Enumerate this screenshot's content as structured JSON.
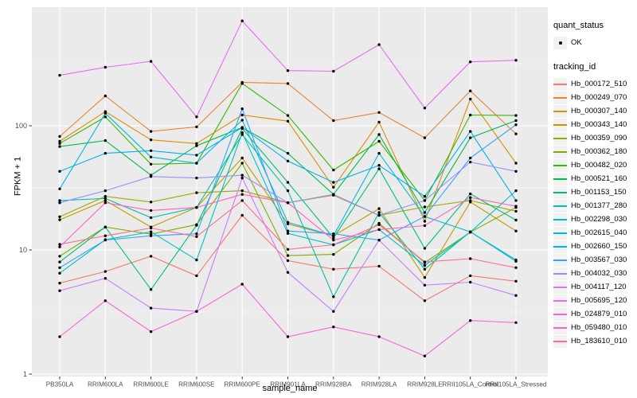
{
  "figure": {
    "y_axis": {
      "label": "FPKM + 1",
      "tick_labels": [
        "1",
        "10",
        "100"
      ],
      "tick_values": [
        1,
        10,
        100
      ],
      "minor_tick_values": [
        3.162,
        31.62,
        316.2
      ]
    },
    "x_axis": {
      "label": "sample_name"
    },
    "legend": {
      "quant_status": {
        "title": "quant_status",
        "items": [
          {
            "label": "OK",
            "marker": "black-point"
          }
        ]
      },
      "tracking_id": {
        "title": "tracking_id"
      }
    },
    "colors": {
      "panel_bg": "#EBEBEB",
      "grid": "#FFFFFF",
      "point": "#000000",
      "tick_text": "#4D4D4D",
      "tick_mark": "#333333",
      "legend_key_bg": "#F2F2F2"
    }
  },
  "chart_data": {
    "type": "line",
    "title": "",
    "xlabel": "sample_name",
    "ylabel": "FPKM + 1",
    "y_scale": "log10",
    "ylim": [
      1,
      900
    ],
    "grid": true,
    "legend_position": "right",
    "point_marker": "black dot (quant_status OK)",
    "x": [
      "PB350LA",
      "RRIM600LA",
      "RRIM600LE",
      "RRIM600SE",
      "RRIM600PE",
      "RRIM901LA",
      "RRIM928BA",
      "RRIM928LA",
      "RRIM928LE",
      "RRII105LA_Control",
      "RRII105LA_Stressed"
    ],
    "series": [
      {
        "name": "Hb_000172_510",
        "color": "#F8766D",
        "quant_status": "OK",
        "values": [
          5.4,
          6.7,
          8.9,
          6.2,
          19,
          8.2,
          7.0,
          7.4,
          3.9,
          6.2,
          5.6
        ]
      },
      {
        "name": "Hb_000249_070",
        "color": "#EA8331",
        "quant_status": "OK",
        "values": [
          82,
          174,
          90,
          98,
          224,
          219,
          110,
          128,
          80,
          191,
          86
        ]
      },
      {
        "name": "Hb_000307_140",
        "color": "#D89000",
        "quant_status": "OK",
        "values": [
          75,
          130,
          77,
          72,
          122,
          109,
          32,
          107,
          17,
          164,
          50
        ]
      },
      {
        "name": "Hb_000343_140",
        "color": "#C09B00",
        "quant_status": "OK",
        "values": [
          17.5,
          25,
          15.3,
          22,
          55,
          16.2,
          13,
          21.5,
          6.0,
          24.3,
          14.2
        ]
      },
      {
        "name": "Hb_000359_090",
        "color": "#A3A500",
        "quant_status": "OK",
        "values": [
          18.5,
          27,
          24.3,
          28.9,
          30,
          24,
          27.6,
          19,
          22.2,
          25,
          20.5
        ]
      },
      {
        "name": "Hb_000362_180",
        "color": "#7CAE00",
        "quant_status": "OK",
        "values": [
          8.9,
          15.3,
          13.4,
          16,
          50,
          9.0,
          9.2,
          16.4,
          7.9,
          13.9,
          22
        ]
      },
      {
        "name": "Hb_000482_020",
        "color": "#39B600",
        "quant_status": "OK",
        "values": [
          72,
          118,
          49,
          50,
          219,
          121,
          44,
          75,
          25,
          122,
          121
        ]
      },
      {
        "name": "Hb_000521_160",
        "color": "#00BB4E",
        "quant_status": "OK",
        "values": [
          68,
          76,
          40,
          69,
          97,
          60,
          28,
          85,
          20,
          80,
          110
        ]
      },
      {
        "name": "Hb_001153_150",
        "color": "#00BF7D",
        "quant_status": "OK",
        "values": [
          8.0,
          15.3,
          4.8,
          15.8,
          95,
          35,
          12.5,
          45,
          10.3,
          28.3,
          17.4
        ]
      },
      {
        "name": "Hb_001377_280",
        "color": "#00C1A3",
        "quant_status": "OK",
        "values": [
          25,
          26,
          18.2,
          22,
          85,
          30,
          4.2,
          20,
          7.0,
          14,
          8.1
        ]
      },
      {
        "name": "Hb_002298_030",
        "color": "#00BFC4",
        "quant_status": "OK",
        "values": [
          6.5,
          12.1,
          14,
          8.3,
          88,
          13.6,
          11,
          14.6,
          7.5,
          13.9,
          30
        ]
      },
      {
        "name": "Hb_002615_040",
        "color": "#00BAE0",
        "quant_status": "OK",
        "values": [
          31,
          126,
          56,
          50,
          111,
          16.7,
          13,
          60,
          18.6,
          14,
          8.3
        ]
      },
      {
        "name": "Hb_002660_150",
        "color": "#00B0F6",
        "quant_status": "OK",
        "values": [
          43,
          60,
          63,
          58,
          97,
          52,
          35,
          48,
          27,
          90,
          25
        ]
      },
      {
        "name": "Hb_003567_030",
        "color": "#35A2FF",
        "quant_status": "OK",
        "values": [
          7.2,
          12,
          13,
          13.5,
          137,
          14.2,
          13.5,
          12,
          18.6,
          55,
          102
        ]
      },
      {
        "name": "Hb_004032_030",
        "color": "#9590FF",
        "quant_status": "OK",
        "values": [
          24,
          30,
          39,
          38,
          40,
          24,
          28,
          19,
          25,
          51,
          43
        ]
      },
      {
        "name": "Hb_004117_120",
        "color": "#C77CFF",
        "quant_status": "OK",
        "values": [
          4.7,
          5.9,
          3.4,
          3.2,
          38,
          6.6,
          3.2,
          12,
          5.2,
          5.5,
          4.3
        ]
      },
      {
        "name": "Hb_005695_120",
        "color": "#E76BF3",
        "quant_status": "OK",
        "values": [
          255,
          296,
          330,
          118,
          700,
          278,
          275,
          450,
          139,
          327,
          337
        ]
      },
      {
        "name": "Hb_024879_010",
        "color": "#FA62DB",
        "quant_status": "OK",
        "values": [
          2.0,
          3.9,
          2.2,
          3.2,
          5.3,
          2.0,
          2.4,
          2.0,
          1.4,
          2.7,
          2.6
        ]
      },
      {
        "name": "Hb_059480_010",
        "color": "#FF62BC",
        "quant_status": "OK",
        "values": [
          10.6,
          24,
          20.8,
          22,
          28,
          24,
          12,
          14.6,
          15.7,
          26.4,
          22.5
        ]
      },
      {
        "name": "Hb_183610_010",
        "color": "#FF6A98",
        "quant_status": "OK",
        "values": [
          11.1,
          13,
          15,
          12.8,
          25,
          10.1,
          11,
          16,
          8.0,
          8.5,
          7.2
        ]
      }
    ]
  }
}
